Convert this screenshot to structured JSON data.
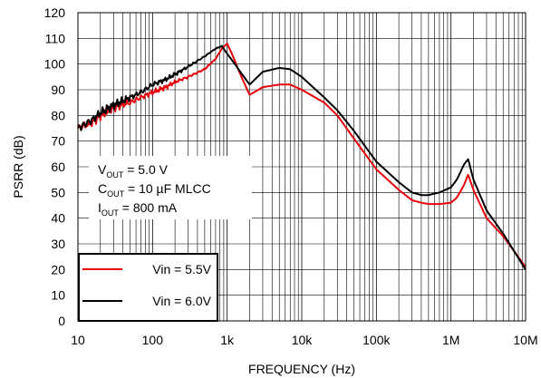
{
  "chart_data": {
    "type": "line",
    "xlabel": "FREQUENCY (Hz)",
    "ylabel": "PSRR (dB)",
    "x_scale": "log",
    "xlim": [
      10,
      10000000
    ],
    "ylim": [
      0,
      120
    ],
    "grid": true,
    "x_ticks": [
      {
        "value": 10,
        "label": "10"
      },
      {
        "value": 100,
        "label": "100"
      },
      {
        "value": 1000,
        "label": "1k"
      },
      {
        "value": 10000,
        "label": "10k"
      },
      {
        "value": 100000,
        "label": "100k"
      },
      {
        "value": 1000000,
        "label": "1M"
      },
      {
        "value": 10000000,
        "label": "10M"
      }
    ],
    "y_ticks": [
      0,
      10,
      20,
      30,
      40,
      50,
      60,
      70,
      80,
      90,
      100,
      110,
      120
    ],
    "annotations": [
      {
        "main": "V",
        "sub": "OUT",
        "rest": " = 5.0 V"
      },
      {
        "main": "C",
        "sub": "OUT",
        "rest": " = 10 µF MLCC"
      },
      {
        "main": "I",
        "sub": "OUT",
        "rest": " = 800 mA"
      }
    ],
    "legend": {
      "position": "bottom-left"
    },
    "series": [
      {
        "name": "Vin = 5.5V",
        "color": "#e8000b",
        "x": [
          10,
          15,
          20,
          30,
          50,
          70,
          100,
          150,
          200,
          300,
          500,
          700,
          850,
          1000,
          1200,
          1500,
          2000,
          3000,
          5000,
          7000,
          10000,
          20000,
          30000,
          50000,
          100000,
          200000,
          300000,
          400000,
          500000,
          700000,
          1000000,
          1200000,
          1500000,
          1700000,
          2000000,
          3000000,
          5000000,
          10000000
        ],
        "y": [
          75,
          77,
          80,
          83,
          85,
          87,
          89,
          91,
          93,
          95,
          98,
          102,
          106,
          108,
          103,
          96,
          88,
          91,
          92,
          92,
          90,
          85,
          80,
          71,
          59,
          51,
          47,
          46,
          45.5,
          45.5,
          46,
          48,
          53,
          57,
          51,
          40,
          33,
          21
        ]
      },
      {
        "name": "Vin = 6.0V",
        "color": "#000000",
        "x": [
          10,
          15,
          20,
          30,
          50,
          70,
          100,
          150,
          200,
          300,
          500,
          700,
          850,
          1000,
          1200,
          1500,
          2000,
          3000,
          5000,
          7000,
          10000,
          20000,
          30000,
          50000,
          100000,
          200000,
          300000,
          400000,
          500000,
          700000,
          1000000,
          1200000,
          1500000,
          1700000,
          2000000,
          3000000,
          5000000,
          10000000
        ],
        "y": [
          75,
          78,
          81,
          84,
          87,
          89,
          92,
          94,
          96,
          99,
          103,
          106,
          107,
          104,
          101,
          97,
          92,
          97,
          98.5,
          98,
          95,
          87,
          82,
          74,
          62,
          54,
          50,
          49,
          49,
          50,
          52,
          55,
          61,
          63,
          55,
          43,
          34,
          20
        ]
      }
    ]
  }
}
